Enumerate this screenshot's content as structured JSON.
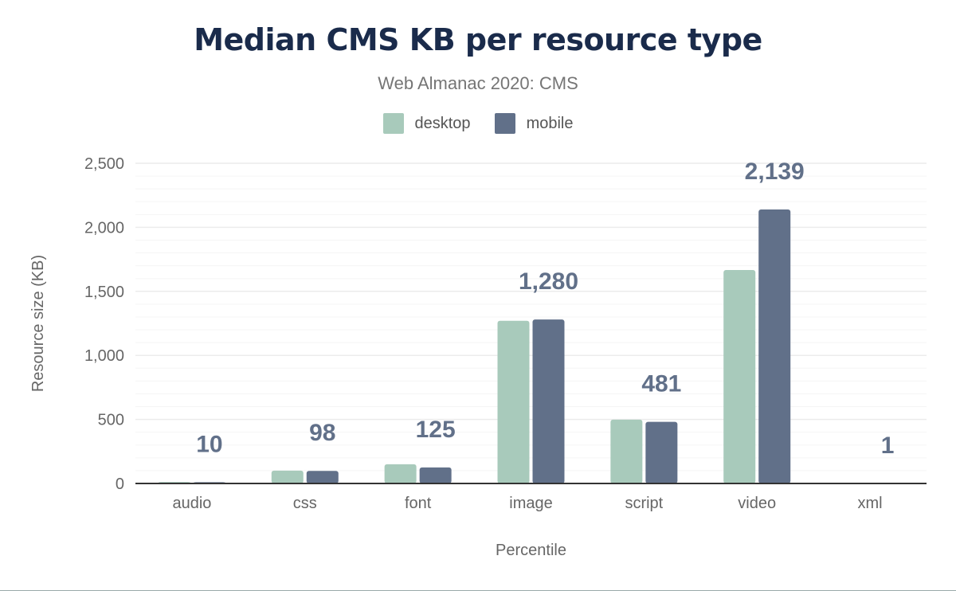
{
  "chart_data": {
    "type": "bar",
    "title": "Median CMS KB per resource type",
    "subtitle": "Web Almanac 2020: CMS",
    "xlabel": "Percentile",
    "ylabel": "Resource size (KB)",
    "ylim": [
      0,
      2500
    ],
    "yticks": [
      0,
      500,
      1000,
      1500,
      2000,
      2500
    ],
    "ytick_labels": [
      "0",
      "500",
      "1,000",
      "1,500",
      "2,000",
      "2,500"
    ],
    "grid": true,
    "legend_position": "top",
    "categories": [
      "audio",
      "css",
      "font",
      "image",
      "script",
      "video",
      "xml"
    ],
    "series": [
      {
        "name": "desktop",
        "color": "#a8cabb",
        "values": [
          12,
          100,
          150,
          1270,
          498,
          1667,
          0
        ]
      },
      {
        "name": "mobile",
        "color": "#617089",
        "values": [
          10,
          98,
          125,
          1280,
          481,
          2139,
          1
        ]
      }
    ],
    "data_labels": [
      "10",
      "98",
      "125",
      "1,280",
      "481",
      "2,139",
      "1"
    ]
  }
}
